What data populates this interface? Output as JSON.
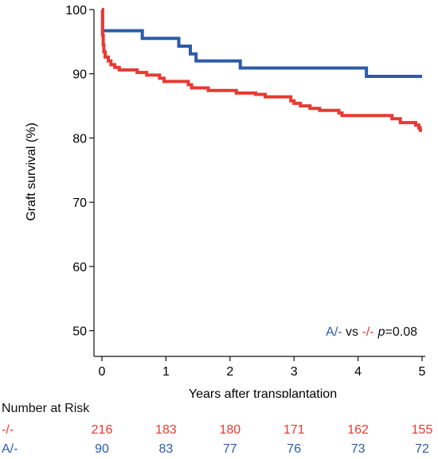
{
  "chart_data": {
    "type": "line",
    "title": "",
    "xlabel": "Years after transplantation",
    "ylabel": "Graft survival (%)",
    "xlim": [
      0,
      5
    ],
    "ylim": [
      46,
      100
    ],
    "xticks": [
      0,
      1,
      2,
      3,
      4,
      5
    ],
    "yticks": [
      50,
      60,
      70,
      80,
      90,
      100
    ],
    "grid": false,
    "series": [
      {
        "name": "A/-",
        "color": "#2b5ca8",
        "steps": [
          [
            0,
            100
          ],
          [
            0.01,
            96.7
          ],
          [
            0.63,
            95.5
          ],
          [
            1.2,
            94.3
          ],
          [
            1.38,
            93.1
          ],
          [
            1.47,
            92.0
          ],
          [
            2.16,
            90.9
          ],
          [
            4.13,
            89.6
          ],
          [
            5.0,
            89.6
          ]
        ]
      },
      {
        "name": "-/-",
        "color": "#e83a32",
        "steps": [
          [
            0,
            100
          ],
          [
            0.01,
            96.0
          ],
          [
            0.02,
            94.5
          ],
          [
            0.03,
            93.4
          ],
          [
            0.05,
            92.6
          ],
          [
            0.1,
            92.0
          ],
          [
            0.14,
            91.4
          ],
          [
            0.2,
            91.0
          ],
          [
            0.27,
            90.6
          ],
          [
            0.55,
            90.2
          ],
          [
            0.7,
            89.8
          ],
          [
            0.9,
            89.3
          ],
          [
            0.97,
            88.8
          ],
          [
            1.35,
            88.3
          ],
          [
            1.4,
            87.8
          ],
          [
            1.66,
            87.4
          ],
          [
            2.1,
            87.0
          ],
          [
            2.4,
            86.8
          ],
          [
            2.55,
            86.4
          ],
          [
            2.95,
            85.8
          ],
          [
            3.0,
            85.4
          ],
          [
            3.1,
            85.0
          ],
          [
            3.25,
            84.6
          ],
          [
            3.4,
            84.3
          ],
          [
            3.7,
            83.9
          ],
          [
            3.75,
            83.5
          ],
          [
            4.53,
            83.0
          ],
          [
            4.66,
            82.4
          ],
          [
            4.9,
            82.0
          ],
          [
            4.95,
            81.6
          ],
          [
            4.97,
            81.2
          ],
          [
            5.0,
            81.2
          ]
        ]
      }
    ],
    "annotation": {
      "a_label": "A/-",
      "vs": " vs ",
      "b_label": "-/-",
      "p_italic": "p",
      "p_value": "=0.08"
    }
  },
  "risk_table": {
    "title": "Number at Risk",
    "rows": [
      {
        "group": "-/-",
        "color": "#e83a32",
        "counts": [
          "216",
          "183",
          "180",
          "171",
          "162",
          "155"
        ]
      },
      {
        "group": "A/-",
        "color": "#2b5ca8",
        "counts": [
          "90",
          "83",
          "77",
          "76",
          "73",
          "72"
        ]
      }
    ]
  }
}
